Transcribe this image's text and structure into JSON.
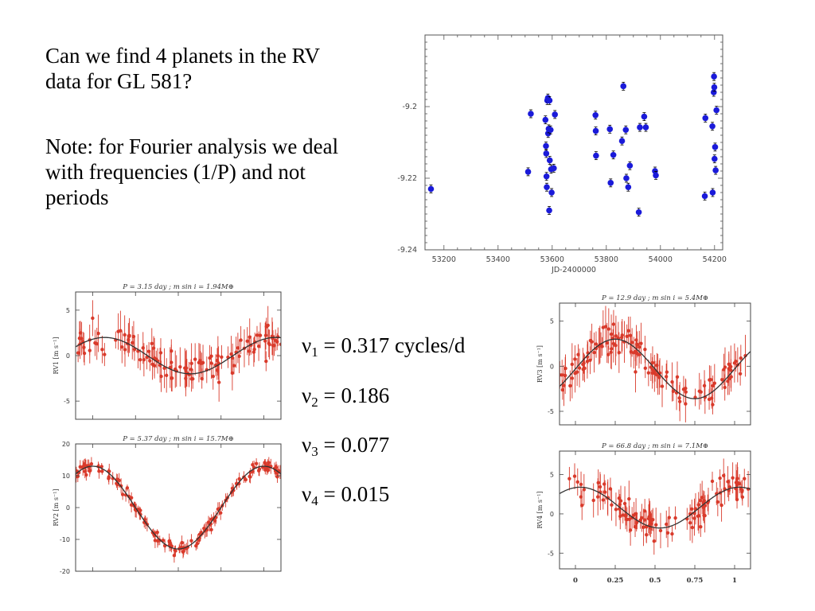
{
  "text": {
    "paragraph1": "Can we find 4 planets in the RV data for GL 581?",
    "paragraph2": "Note: for Fourier analysis we deal with frequencies (1/P) and not periods"
  },
  "frequencies": [
    {
      "symbol": "ν",
      "sub": "1",
      "value": "= 0.317 cycles/d"
    },
    {
      "symbol": "ν",
      "sub": "2",
      "value": "= 0.186"
    },
    {
      "symbol": "ν",
      "sub": "3",
      "value": "= 0.077"
    },
    {
      "symbol": "ν",
      "sub": "4",
      "value": "= 0.015"
    }
  ],
  "colors": {
    "main_points": "#1a1ad9",
    "phase_points": "#d93a2b",
    "fit_curve": "#333333",
    "axis": "#555555"
  },
  "chart_data": [
    {
      "id": "main",
      "type": "scatter",
      "xlabel": "JD-2400000",
      "ylabel": "",
      "xlim": [
        53130,
        54230
      ],
      "ylim": [
        -9.24,
        -9.18
      ],
      "xticks": [
        53200,
        53400,
        53600,
        53800,
        54000,
        54200
      ],
      "yticks": [
        -9.2,
        -9.22,
        -9.24
      ],
      "ytick_labels": [
        "-9.2",
        "-9.22",
        "-9.24"
      ],
      "grid": false,
      "points": [
        [
          53152,
          -9.223
        ],
        [
          53511,
          -9.2182
        ],
        [
          53521,
          -9.202
        ],
        [
          53575,
          -9.2037
        ],
        [
          53577,
          -9.211
        ],
        [
          53578,
          -9.2131
        ],
        [
          53579,
          -9.2195
        ],
        [
          53580,
          -9.2225
        ],
        [
          53582,
          -9.1983
        ],
        [
          53584,
          -9.1976
        ],
        [
          53585,
          -9.2075
        ],
        [
          53587,
          -9.2062
        ],
        [
          53589,
          -9.229
        ],
        [
          53590,
          -9.1983
        ],
        [
          53591,
          -9.215
        ],
        [
          53594,
          -9.2065
        ],
        [
          53596,
          -9.2175
        ],
        [
          53598,
          -9.224
        ],
        [
          53606,
          -9.2172
        ],
        [
          53610,
          -9.2022
        ],
        [
          53760,
          -9.2024
        ],
        [
          53761,
          -9.2068
        ],
        [
          53762,
          -9.2137
        ],
        [
          53813,
          -9.2063
        ],
        [
          53816,
          -9.2213
        ],
        [
          53826,
          -9.2135
        ],
        [
          53858,
          -9.2096
        ],
        [
          53863,
          -9.1943
        ],
        [
          53872,
          -9.2065
        ],
        [
          53874,
          -9.22
        ],
        [
          53881,
          -9.2225
        ],
        [
          53887,
          -9.2165
        ],
        [
          53920,
          -9.2295
        ],
        [
          53924,
          -9.2058
        ],
        [
          53940,
          -9.2028
        ],
        [
          53946,
          -9.2058
        ],
        [
          53980,
          -9.218
        ],
        [
          53983,
          -9.2192
        ],
        [
          54164,
          -9.225
        ],
        [
          54166,
          -9.2032
        ],
        [
          54192,
          -9.2055
        ],
        [
          54193,
          -9.224
        ],
        [
          54197,
          -9.196
        ],
        [
          54198,
          -9.1916
        ],
        [
          54199,
          -9.1946
        ],
        [
          54200,
          -9.2146
        ],
        [
          54202,
          -9.2113
        ],
        [
          54204,
          -9.2178
        ],
        [
          54207,
          -9.201
        ]
      ]
    },
    {
      "id": "rv1",
      "type": "scatter",
      "title": "P = 3.15 day ; m sin i = 1.94M⊕",
      "ylabel": "RV1 [m s⁻¹]",
      "xlim": [
        -0.1,
        1.1
      ],
      "ylim": [
        -7,
        7
      ],
      "yticks": [
        5,
        0,
        -5
      ],
      "fit": {
        "amplitude": 2.0,
        "center": 0.0,
        "phase": 0.07
      },
      "n_points": 120,
      "scatter": 1.5
    },
    {
      "id": "rv2",
      "type": "scatter",
      "title": "P = 5.37 day ; m sin i = 15.7M⊕",
      "ylabel": "RV2 [m s⁻¹]",
      "xlim": [
        -0.1,
        1.1
      ],
      "ylim": [
        -20,
        20
      ],
      "yticks": [
        20,
        10,
        0,
        -10,
        -20
      ],
      "fit": {
        "amplitude": 13.0,
        "center": 0.0,
        "phase": 0.0
      },
      "n_points": 150,
      "scatter": 1.6
    },
    {
      "id": "rv3",
      "type": "scatter",
      "title": "P = 12.9 day ; m sin i = 5.4M⊕",
      "ylabel": "RV3 [m s⁻¹]",
      "xlim": [
        -0.1,
        1.1
      ],
      "ylim": [
        -6.5,
        7
      ],
      "yticks": [
        5,
        0,
        -5
      ],
      "fit": {
        "amplitude": 3.3,
        "center": -0.3,
        "phase": 0.25
      },
      "n_points": 120,
      "scatter": 1.6
    },
    {
      "id": "rv4",
      "type": "scatter",
      "title": "P = 66.8 day ; m sin i = 7.1M⊕",
      "ylabel": "RV4 [m s⁻¹]",
      "xlabel_ticks": [
        "0",
        "0.25",
        "0.5",
        "0.75",
        "1"
      ],
      "xlim": [
        -0.1,
        1.1
      ],
      "ylim": [
        -7,
        8
      ],
      "yticks": [
        5,
        0,
        -5
      ],
      "fit": {
        "amplitude": 2.6,
        "center": 0.8,
        "phase": 0.03
      },
      "n_points": 110,
      "scatter": 1.6
    }
  ]
}
